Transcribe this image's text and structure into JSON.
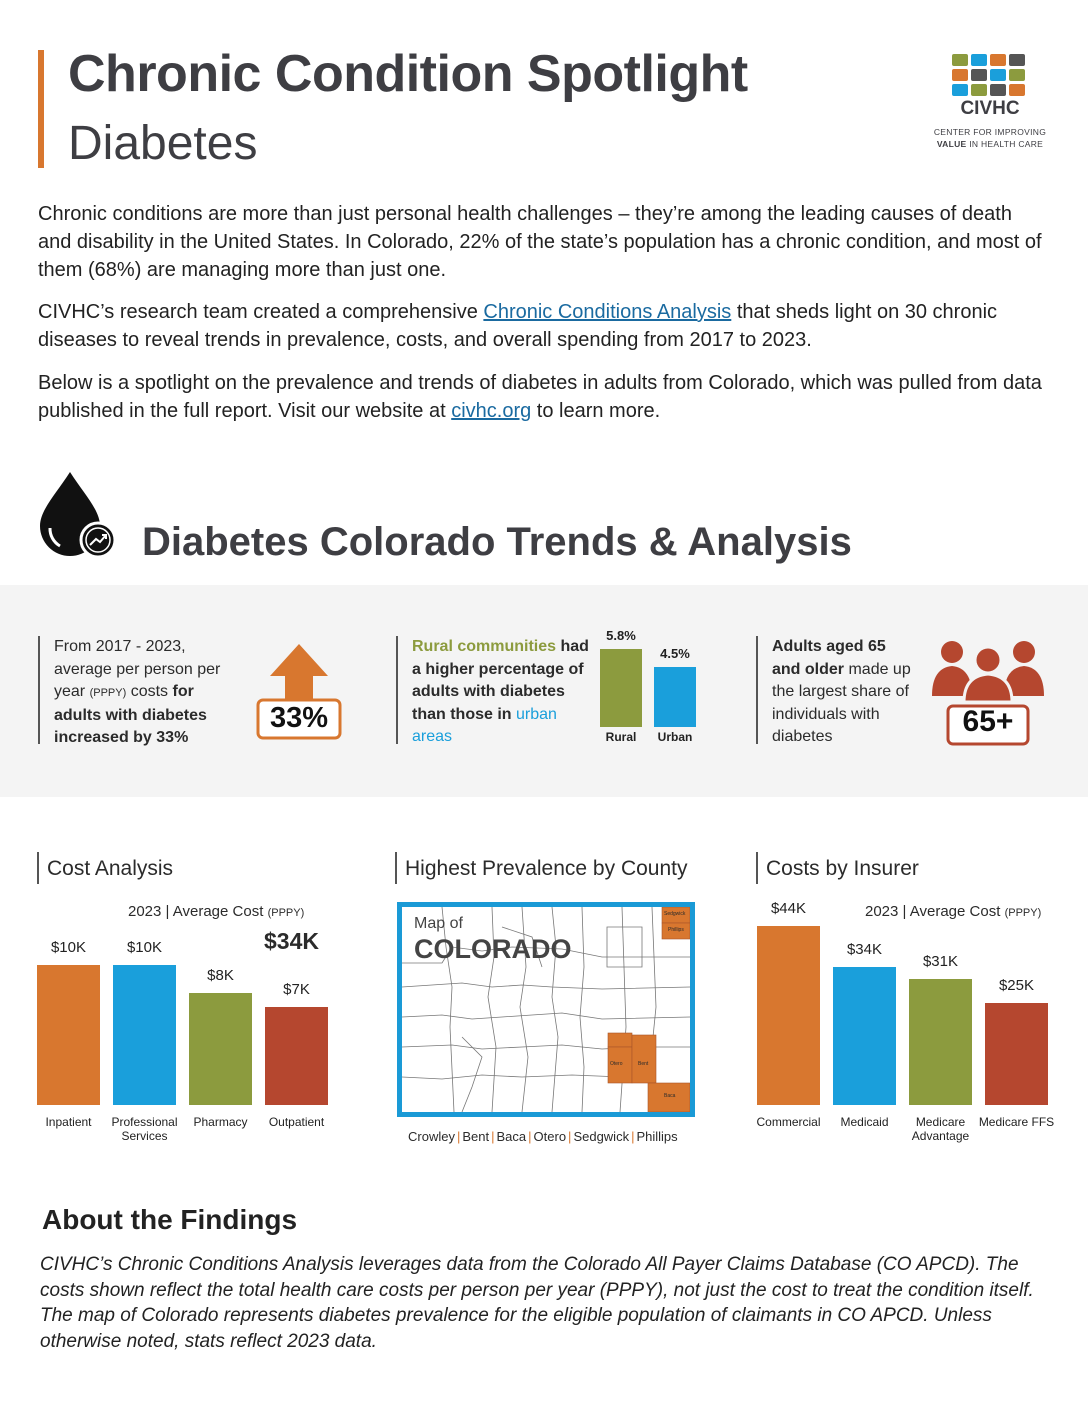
{
  "header": {
    "title": "Chronic Condition Spotlight",
    "subtitle": "Diabetes"
  },
  "logo": {
    "name": "CIVHC",
    "tagline_1": "CENTER FOR IMPROVING",
    "tagline_2_bold": "VALUE",
    "tagline_2": " IN HEALTH CARE"
  },
  "intro": {
    "p1": "Chronic conditions are more than just personal health challenges – they’re among the leading causes of death and disability in the United States. In Colorado, 22% of the state’s population has a chronic condition, and most of them (68%) are managing more than just one.",
    "p2_a": "CIVHC’s research team created a comprehensive ",
    "p2_link": "Chronic Conditions Analysis",
    "p2_b": " that sheds light on 30 chronic diseases to reveal trends in prevalence, costs, and overall spending from 2017 to 2023.",
    "p3_a": "Below is a spotlight on the prevalence and trends of diabetes in adults from Colorado, which was pulled from data published in the full report. Visit our website at ",
    "p3_link": "civhc.org",
    "p3_b": " to learn more."
  },
  "section_title": "Diabetes Colorado Trends & Analysis",
  "stats": {
    "s1": {
      "t1": "From 2017 - 2023, average per person per year ",
      "pppy": "(PPPY)",
      "t2": " costs ",
      "b1": "for adults with diabetes increased by 33%",
      "badge": "33%"
    },
    "s2": {
      "g": "Rural communities",
      "t1": " had a higher percentage of adults with diabetes than those in ",
      "u": "urban areas",
      "bars": [
        {
          "label": "Rural",
          "value": 5.8,
          "display": "5.8%",
          "color": "#8c9b3e"
        },
        {
          "label": "Urban",
          "value": 4.5,
          "display": "4.5%",
          "color": "#1a9fdb"
        }
      ]
    },
    "s3": {
      "b1": "Adults aged 65 and older",
      "t1": " made up the largest share of individuals with diabetes",
      "badge": "65+"
    }
  },
  "cost_analysis": {
    "title": "Cost Analysis",
    "caption": "2023 | Average Cost ",
    "pppy": "(PPPY)",
    "total": "$34K",
    "bars": [
      {
        "label": "Inpatient",
        "value": 10,
        "display": "$10K",
        "color": "#d8772f"
      },
      {
        "label": "Professional Services",
        "value": 10,
        "display": "$10K",
        "color": "#1a9fdb"
      },
      {
        "label": "Pharmacy",
        "value": 8,
        "display": "$8K",
        "color": "#8c9b3e"
      },
      {
        "label": "Outpatient",
        "value": 7,
        "display": "$7K",
        "color": "#b5472f"
      }
    ]
  },
  "county": {
    "title": "Highest Prevalence by County",
    "map_small": "Map of",
    "map_big": "COLORADO",
    "counties": [
      "Crowley",
      "Bent",
      "Baca",
      "Otero",
      "Sedgwick",
      "Phillips"
    ],
    "map_labels": {
      "sedgwick": "Sedgwick",
      "phillips": "Phillips",
      "otero": "Otero",
      "bent": "Bent",
      "baca": "Baca"
    },
    "highlight_color": "#d8772f"
  },
  "insurer": {
    "title": "Costs by Insurer",
    "caption": "2023 | Average Cost ",
    "pppy": "(PPPY)",
    "bars": [
      {
        "label": "Commercial",
        "value": 44,
        "display": "$44K",
        "color": "#d8772f"
      },
      {
        "label": "Medicaid",
        "value": 34,
        "display": "$34K",
        "color": "#1a9fdb"
      },
      {
        "label": "Medicare Advantage",
        "value": 31,
        "display": "$31K",
        "color": "#8c9b3e"
      },
      {
        "label": "Medicare FFS",
        "value": 25,
        "display": "$25K",
        "color": "#b5472f"
      }
    ]
  },
  "about": {
    "title": "About the Findings",
    "text": "CIVHC’s Chronic Conditions Analysis leverages data from the Colorado All Payer Claims Database (CO APCD). The costs shown reflect the total health care costs per person per year (PPPY), not just the cost to treat the condition itself. The map of Colorado represents diabetes  prevalence for the eligible population of claimants in CO APCD. Unless otherwise noted, stats reflect 2023 data."
  }
}
